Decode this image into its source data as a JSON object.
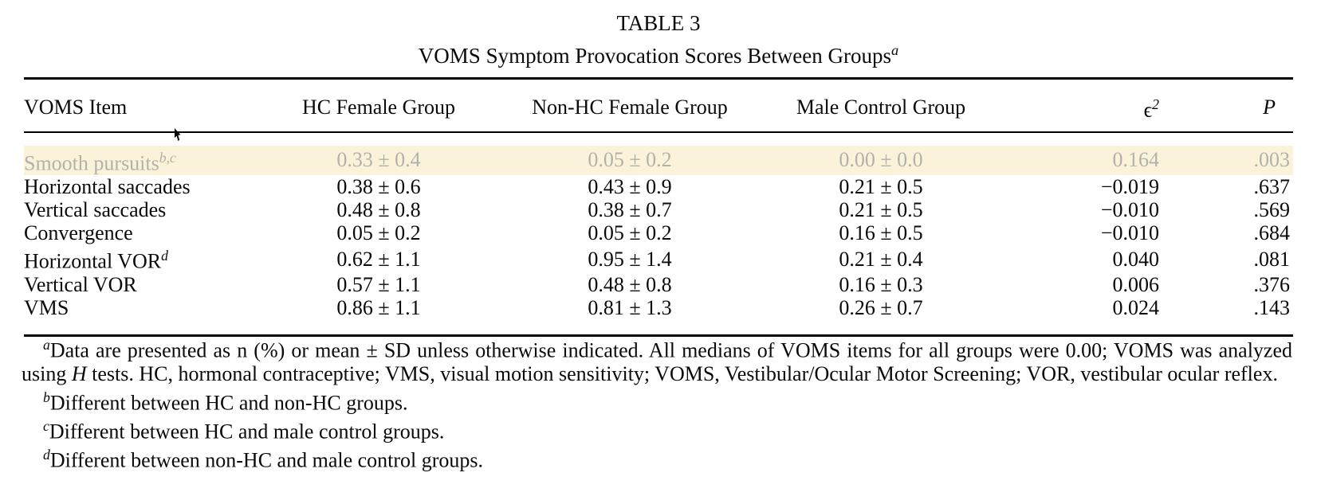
{
  "title": "TABLE 3",
  "subtitle": {
    "text": "VOMS Symptom Provocation Scores Between Groups",
    "sup": "a"
  },
  "table": {
    "columns": [
      {
        "label": "VOMS Item"
      },
      {
        "label": "HC Female Group"
      },
      {
        "label": "Non-HC Female Group"
      },
      {
        "label": "Male Control Group"
      },
      {
        "label": "ϵ",
        "sup": "2"
      },
      {
        "label": "P",
        "italic": true
      }
    ],
    "rows": [
      {
        "item": "Smooth pursuits",
        "sup": "b,c",
        "highlighted": true,
        "values": [
          "0.33 ± 0.4",
          "0.05 ± 0.2",
          "0.00 ± 0.0",
          "0.164",
          ".003"
        ]
      },
      {
        "item": "Horizontal saccades",
        "sup": "",
        "values": [
          "0.38 ± 0.6",
          "0.43 ± 0.9",
          "0.21 ± 0.5",
          "−0.019",
          ".637"
        ]
      },
      {
        "item": "Vertical saccades",
        "sup": "",
        "values": [
          "0.48 ± 0.8",
          "0.38 ± 0.7",
          "0.21 ± 0.5",
          "−0.010",
          ".569"
        ]
      },
      {
        "item": "Convergence",
        "sup": "",
        "values": [
          "0.05 ± 0.2",
          "0.05 ± 0.2",
          "0.16 ± 0.5",
          "−0.010",
          ".684"
        ]
      },
      {
        "item": "Horizontal VOR",
        "sup": "d",
        "values": [
          "0.62 ± 1.1",
          "0.95 ± 1.4",
          "0.21 ± 0.4",
          "0.040",
          ".081"
        ]
      },
      {
        "item": "Vertical VOR",
        "sup": "",
        "values": [
          "0.57 ± 1.1",
          "0.48 ± 0.8",
          "0.16 ± 0.3",
          "0.006",
          ".376"
        ]
      },
      {
        "item": "VMS",
        "sup": "",
        "values": [
          "0.86 ± 1.1",
          "0.81 ± 1.3",
          "0.26 ± 0.7",
          "0.024",
          ".143"
        ]
      }
    ],
    "highlight": {
      "bg": "#faf3d9",
      "text": "#b3b2aa"
    }
  },
  "footnotes": [
    {
      "marker": "a",
      "parts": [
        {
          "text": "Data are presented as n (%) or mean ± SD unless otherwise indicated. All medians of VOMS items for all groups were 0.00; VOMS was analyzed using "
        },
        {
          "text": "H",
          "italic": true
        },
        {
          "text": " tests. HC, hormonal contraceptive; VMS, visual motion sensitivity; VOMS, Vestibular/Ocular Motor Screening; VOR, vestibular ocular reflex."
        }
      ]
    },
    {
      "marker": "b",
      "parts": [
        {
          "text": "Different between HC and non-HC groups."
        }
      ]
    },
    {
      "marker": "c",
      "parts": [
        {
          "text": "Different between HC and male control groups."
        }
      ]
    },
    {
      "marker": "d",
      "parts": [
        {
          "text": "Different between non-HC and male control groups."
        }
      ]
    }
  ]
}
